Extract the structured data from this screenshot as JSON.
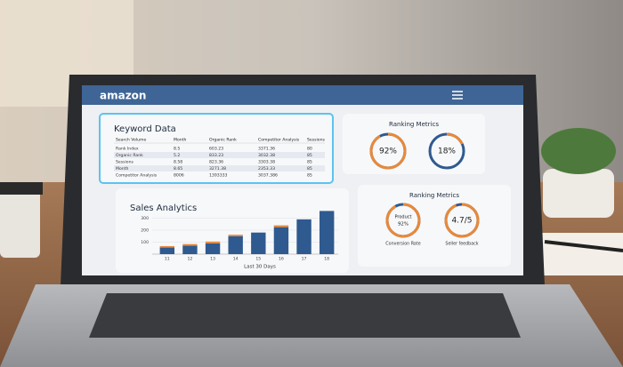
{
  "header": {
    "logo": "amazon"
  },
  "keyword_data": {
    "title": "Keyword Data",
    "columns": [
      "Search Volume",
      "Month",
      "Organic Rank",
      "Competitor Analysis",
      "Sessions"
    ],
    "rows": [
      [
        "Rank Index",
        "8.5",
        "603.23",
        "3371.36",
        "80"
      ],
      [
        "Organic Rank",
        "5.2",
        "833.23",
        "3032.38",
        "85"
      ],
      [
        "Sessions",
        "8.58",
        "823.36",
        "3303.38",
        "85"
      ],
      [
        "Month",
        "8.65",
        "3271.38",
        "2353.33",
        "85"
      ],
      [
        "Competitor Analysis",
        "8006",
        "1393333",
        "3037.386",
        "85"
      ]
    ]
  },
  "ranking_metrics": {
    "title": "Ranking Metrics",
    "gauges": [
      {
        "value": 92,
        "max": 100,
        "label": "92%"
      },
      {
        "value": 18,
        "max": 100,
        "label": "18%"
      }
    ]
  },
  "ranking_metrics_2": {
    "title": "Ranking Metrics",
    "gauges": [
      {
        "name": "Product",
        "value": 92,
        "max": 100,
        "label": "92%",
        "caption": "Conversion Rate"
      },
      {
        "value": 4.7,
        "max": 5,
        "label": "4.7/5",
        "caption": "Seller feedback"
      }
    ]
  },
  "sales_analytics": {
    "type": "bar",
    "title": "Sales Analytics",
    "categories": [
      "11",
      "12",
      "13",
      "14",
      "15",
      "16",
      "17",
      "18"
    ],
    "series": [
      {
        "color": "#2f5a8f",
        "values": [
          55,
          70,
          90,
          150,
          180,
          225,
          290,
          360
        ]
      },
      {
        "color": "#e8893a",
        "values": [
          12,
          14,
          15,
          12,
          0,
          15,
          0,
          0
        ]
      }
    ],
    "ylim": [
      0,
      400
    ],
    "yticks": [
      100,
      200,
      300
    ],
    "xlabel": "Last 30 Days"
  }
}
